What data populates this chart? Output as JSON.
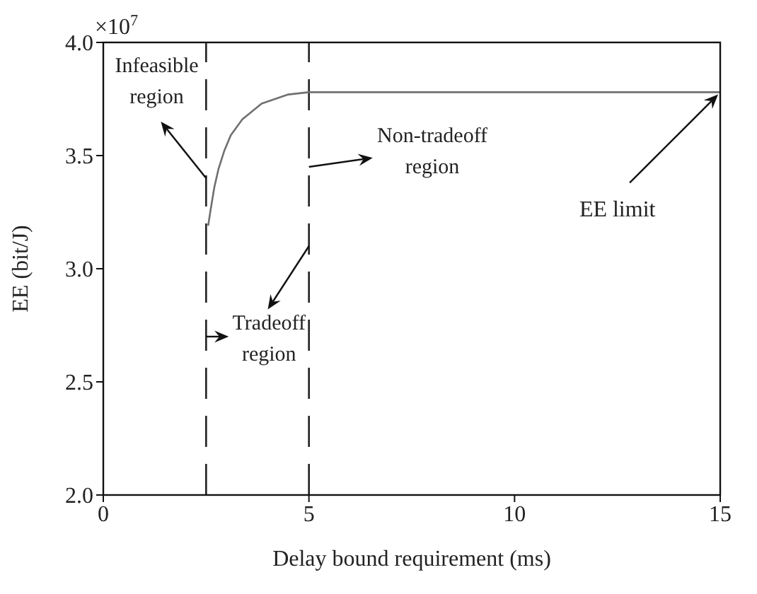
{
  "chart_data": {
    "type": "line",
    "xlabel": "Delay bound requirement (ms)",
    "ylabel": "EE (bit/J)",
    "x": [
      2.55,
      2.6,
      2.7,
      2.8,
      2.94,
      3.1,
      3.38,
      3.85,
      4.5,
      5,
      15
    ],
    "series": [
      {
        "color": "#707070",
        "values": [
          3.19,
          3.25,
          3.36,
          3.44,
          3.52,
          3.59,
          3.66,
          3.73,
          3.77,
          3.78,
          3.78
        ]
      }
    ],
    "xlim": [
      0,
      15
    ],
    "xticks": [
      0,
      5,
      10,
      15
    ],
    "ylim": [
      2.0,
      4.0
    ],
    "yticks": [
      {
        "value": 2,
        "label": "2.0"
      },
      {
        "value": 2.5,
        "label": "2.5"
      },
      {
        "value": 3,
        "label": "3.0"
      },
      {
        "value": 3.5,
        "label": "3.5"
      },
      {
        "value": 4,
        "label": "4.0"
      }
    ],
    "ref_lines": [
      {
        "axis": "x",
        "value": 2.5,
        "color": "#222222",
        "line_style": "dashed"
      },
      {
        "axis": "x",
        "value": 5,
        "color": "#222222",
        "line_style": "dashed"
      }
    ],
    "annotations": [
      "×10$^{7}$",
      {
        "text": "Infeasible region",
        "x": 2.5,
        "y": 3.4
      },
      {
        "text": "Tradeoff region",
        "x": 5,
        "y": 3.1
      },
      {
        "text": "Non-tradeoff region",
        "x": 5,
        "y": 3.45
      },
      {
        "text": "EE limit",
        "x": 15,
        "y": 3.78
      }
    ],
    "grid": false,
    "legend": false,
    "marker": "none",
    "line_style": "solid"
  }
}
